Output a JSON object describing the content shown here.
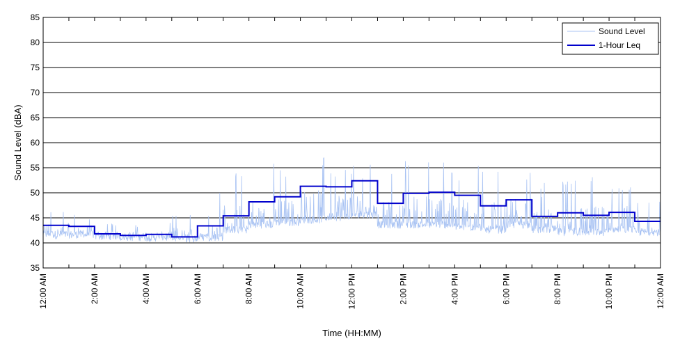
{
  "chart_data": {
    "type": "line",
    "xlabel": "Time (HH:MM)",
    "ylabel": "Sound Level (dBA)",
    "ylim": [
      35,
      85
    ],
    "xlim_hours": [
      0,
      24
    ],
    "yticks": [
      35,
      40,
      45,
      50,
      55,
      60,
      65,
      70,
      75,
      80,
      85
    ],
    "xtick_labels": [
      "12:00 AM",
      "2:00 AM",
      "4:00 AM",
      "6:00 AM",
      "8:00 AM",
      "10:00 AM",
      "12:00 PM",
      "2:00 PM",
      "4:00 PM",
      "6:00 PM",
      "8:00 PM",
      "10:00 PM",
      "12:00 AM"
    ],
    "grid": "horizontal",
    "legend_position": "top-right",
    "series": [
      {
        "name": "Sound Level",
        "color": "#a9c3f3",
        "style": "noisy-fluctuating",
        "hourly_base": [
          41.5,
          41.5,
          41.2,
          41.0,
          40.9,
          40.7,
          41.0,
          42.5,
          43.5,
          44.0,
          44.5,
          45.0,
          45.5,
          43.5,
          43.5,
          43.5,
          43.0,
          42.5,
          43.5,
          42.5,
          42.0,
          42.0,
          42.5,
          42.0
        ],
        "hourly_peak": [
          47,
          46,
          44,
          44,
          44,
          46,
          52,
          54,
          56,
          56,
          58,
          56,
          56,
          54,
          57,
          57,
          56,
          55,
          56,
          52,
          54,
          54,
          54,
          50
        ]
      },
      {
        "name": "1-Hour Leq",
        "color": "#0000cc",
        "style": "step",
        "values": [
          43.5,
          43.3,
          41.8,
          41.5,
          41.7,
          41.2,
          43.4,
          45.4,
          48.2,
          49.2,
          51.3,
          51.2,
          52.4,
          47.9,
          49.9,
          50.1,
          49.5,
          47.4,
          48.6,
          45.3,
          46.0,
          45.5,
          46.1,
          44.3
        ]
      }
    ]
  }
}
